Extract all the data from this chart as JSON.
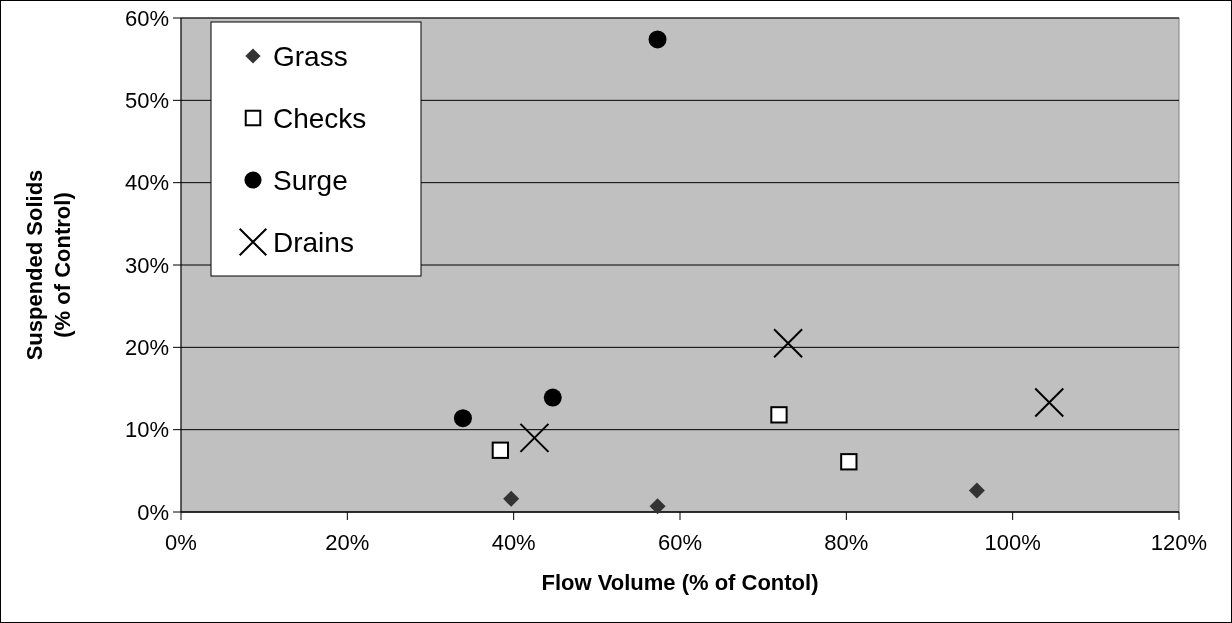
{
  "chart_data": {
    "type": "scatter",
    "xlabel": "Flow Volume (% of Contol)",
    "ylabel": "Suspended Solids\n(% of Control)",
    "xlim": [
      0,
      1.2
    ],
    "ylim": [
      0,
      0.6
    ],
    "xticks": [
      {
        "value": 0,
        "label": "0%"
      },
      {
        "value": 0.2,
        "label": "20%"
      },
      {
        "value": 0.4,
        "label": "40%"
      },
      {
        "value": 0.6,
        "label": "60%"
      },
      {
        "value": 0.8,
        "label": "80%"
      },
      {
        "value": 1,
        "label": "100%"
      },
      {
        "value": 1.2,
        "label": "120%"
      }
    ],
    "yticks": [
      {
        "value": 0,
        "label": "0%"
      },
      {
        "value": 0.1,
        "label": "10%"
      },
      {
        "value": 0.2,
        "label": "20%"
      },
      {
        "value": 0.3,
        "label": "30%"
      },
      {
        "value": 0.4,
        "label": "40%"
      },
      {
        "value": 0.5,
        "label": "50%"
      },
      {
        "value": 0.6,
        "label": "60%"
      }
    ],
    "grid": "y",
    "legend": "top left",
    "series": [
      {
        "name": "Grass",
        "color": "#333333",
        "marker": "diamond",
        "x": [
          0.397,
          0.573,
          0.957
        ],
        "values": [
          0.016,
          0.007,
          0.026
        ]
      },
      {
        "name": "Checks",
        "color": "#ffffff",
        "marker": "square",
        "x": [
          0.384,
          0.719,
          0.803
        ],
        "values": [
          0.075,
          0.118,
          0.061
        ]
      },
      {
        "name": "Surge",
        "color": "#000000",
        "marker": "circle",
        "x": [
          0.339,
          0.447,
          0.573
        ],
        "values": [
          0.114,
          0.139,
          0.574
        ]
      },
      {
        "name": "Drains",
        "color": "#000000",
        "marker": "cross",
        "x": [
          0.425,
          0.73,
          1.044
        ],
        "values": [
          0.09,
          0.205,
          0.133
        ]
      }
    ]
  }
}
